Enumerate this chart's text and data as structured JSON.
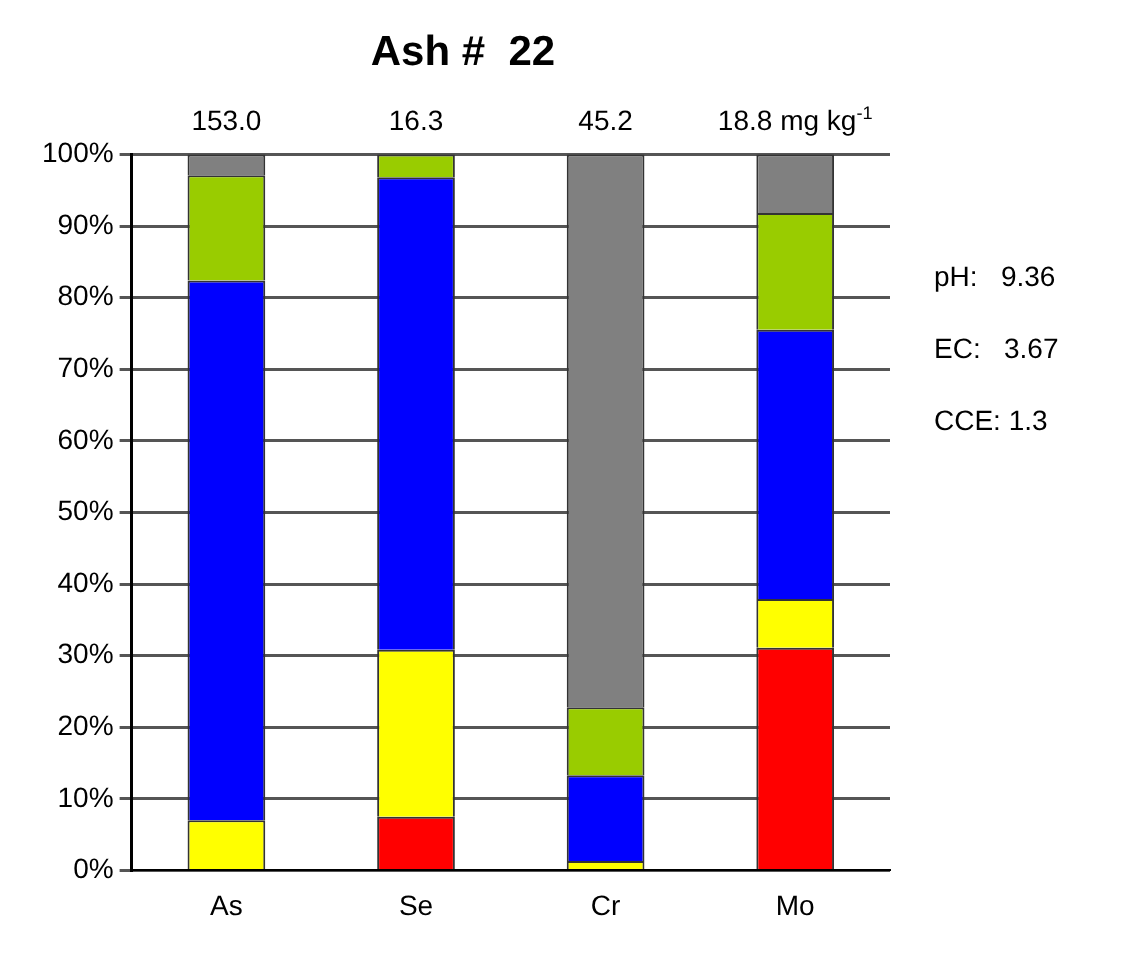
{
  "chart_data": {
    "type": "bar",
    "title": "Ash #  22",
    "stacked": true,
    "categories": [
      "As",
      "Se",
      "Cr",
      "Mo"
    ],
    "series": [
      {
        "color": "#ff0000",
        "values": [
          0,
          7.5,
          0,
          31.1
        ]
      },
      {
        "color": "#ffff00",
        "values": [
          7,
          23.3,
          1.3,
          6.8
        ]
      },
      {
        "color": "#0000ff",
        "values": [
          75.4,
          66,
          12,
          37.6
        ]
      },
      {
        "color": "#99cc00",
        "values": [
          14.7,
          3.2,
          9.5,
          16.3
        ]
      },
      {
        "color": "#808080",
        "values": [
          2.9,
          0,
          77.2,
          8.2
        ]
      }
    ],
    "ylim": [
      0,
      100
    ],
    "yticks": [
      {
        "value": 0,
        "label": "0%"
      },
      {
        "value": 10,
        "label": "10%"
      },
      {
        "value": 20,
        "label": "20%"
      },
      {
        "value": 30,
        "label": "30%"
      },
      {
        "value": 40,
        "label": "40%"
      },
      {
        "value": 50,
        "label": "50%"
      },
      {
        "value": 60,
        "label": "60%"
      },
      {
        "value": 70,
        "label": "70%"
      },
      {
        "value": 80,
        "label": "80%"
      },
      {
        "value": 90,
        "label": "90%"
      },
      {
        "value": 100,
        "label": "100%"
      }
    ],
    "grid": "y",
    "legend": false,
    "annotations": [
      "153.0",
      "16.3",
      "45.2",
      "18.8 mg kg$^{-1}$",
      "pH:   9.36",
      "EC:   3.67",
      "CCE: 1.3"
    ]
  }
}
